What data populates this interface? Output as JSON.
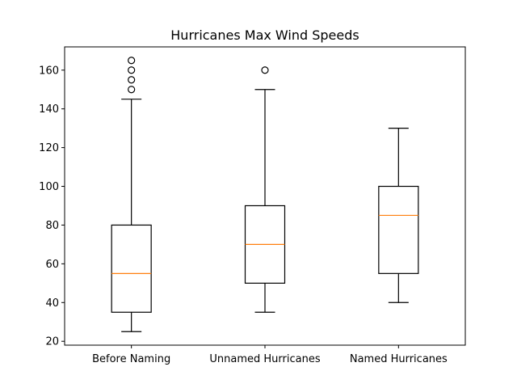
{
  "chart_data": {
    "type": "box",
    "title": "Hurricanes Max Wind Speeds",
    "xlabel": "",
    "ylabel": "",
    "ylim": [
      18,
      172
    ],
    "y_ticks": [
      20,
      40,
      60,
      80,
      100,
      120,
      140,
      160
    ],
    "y_tick_labels": [
      "20",
      "40",
      "60",
      "80",
      "100",
      "120",
      "140",
      "160"
    ],
    "grid": false,
    "colors": {
      "box": "#000000",
      "median": "#ff7f0e",
      "whisker": "#000000",
      "flier": "#000000"
    },
    "categories": [
      "Before Naming",
      "Unnamed Hurricanes",
      "Named Hurricanes"
    ],
    "boxes": [
      {
        "category": "Before Naming",
        "whisker_low": 25,
        "q1": 35,
        "median": 55,
        "q3": 80,
        "whisker_high": 145,
        "fliers": [
          150,
          155,
          160,
          165
        ]
      },
      {
        "category": "Unnamed Hurricanes",
        "whisker_low": 35,
        "q1": 50,
        "median": 70,
        "q3": 90,
        "whisker_high": 150,
        "fliers": [
          160
        ]
      },
      {
        "category": "Named Hurricanes",
        "whisker_low": 40,
        "q1": 55,
        "median": 85,
        "q3": 100,
        "whisker_high": 130,
        "fliers": []
      }
    ]
  }
}
